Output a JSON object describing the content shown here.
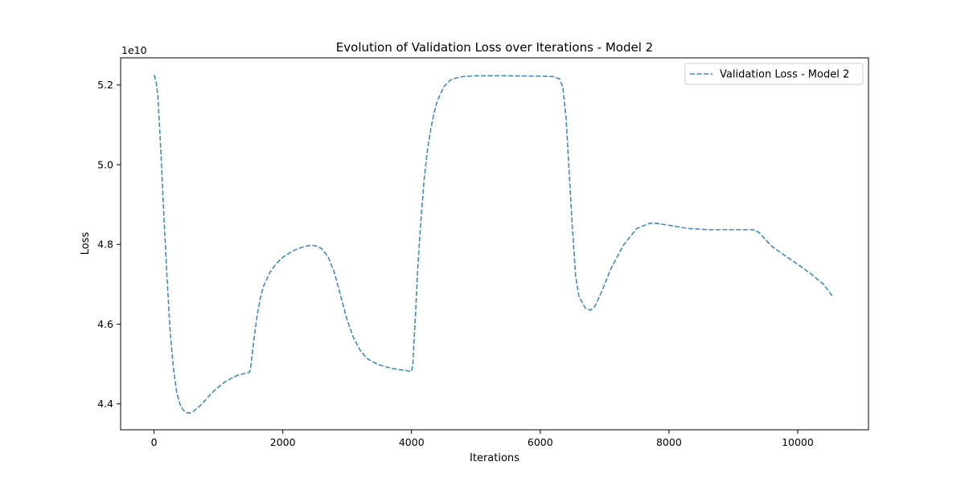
{
  "chart_data": {
    "type": "line",
    "title": "Evolution of Validation Loss over Iterations - Model 2",
    "xlabel": "Iterations",
    "ylabel": "Loss",
    "y_offset_label": "1e10",
    "xlim": [
      -520,
      11100
    ],
    "ylim": [
      4.335,
      5.268
    ],
    "x_ticks": [
      0,
      2000,
      4000,
      6000,
      8000,
      10000
    ],
    "x_tick_labels": [
      "0",
      "2000",
      "4000",
      "6000",
      "8000",
      "10000"
    ],
    "y_ticks": [
      4.4,
      4.6,
      4.8,
      5.0,
      5.2
    ],
    "y_tick_labels": [
      "4.4",
      "4.6",
      "4.8",
      "5.0",
      "5.2"
    ],
    "grid": false,
    "legend_position": "top-right",
    "series": [
      {
        "name": "Validation Loss - Model 2",
        "color": "#1f77b4",
        "line_style": "dashed",
        "points": [
          [
            0,
            5.225
          ],
          [
            30,
            5.21
          ],
          [
            60,
            5.17
          ],
          [
            100,
            5.05
          ],
          [
            150,
            4.88
          ],
          [
            200,
            4.72
          ],
          [
            250,
            4.58
          ],
          [
            300,
            4.49
          ],
          [
            350,
            4.43
          ],
          [
            400,
            4.4
          ],
          [
            450,
            4.385
          ],
          [
            500,
            4.378
          ],
          [
            550,
            4.377
          ],
          [
            600,
            4.38
          ],
          [
            700,
            4.393
          ],
          [
            800,
            4.41
          ],
          [
            900,
            4.428
          ],
          [
            1000,
            4.442
          ],
          [
            1100,
            4.455
          ],
          [
            1200,
            4.464
          ],
          [
            1300,
            4.472
          ],
          [
            1400,
            4.476
          ],
          [
            1480,
            4.479
          ],
          [
            1500,
            4.49
          ],
          [
            1550,
            4.56
          ],
          [
            1600,
            4.62
          ],
          [
            1650,
            4.665
          ],
          [
            1700,
            4.695
          ],
          [
            1800,
            4.73
          ],
          [
            1900,
            4.752
          ],
          [
            2000,
            4.768
          ],
          [
            2100,
            4.778
          ],
          [
            2200,
            4.787
          ],
          [
            2300,
            4.793
          ],
          [
            2400,
            4.797
          ],
          [
            2500,
            4.797
          ],
          [
            2600,
            4.79
          ],
          [
            2700,
            4.77
          ],
          [
            2800,
            4.73
          ],
          [
            2900,
            4.67
          ],
          [
            3000,
            4.61
          ],
          [
            3100,
            4.565
          ],
          [
            3200,
            4.535
          ],
          [
            3300,
            4.515
          ],
          [
            3400,
            4.505
          ],
          [
            3500,
            4.498
          ],
          [
            3600,
            4.493
          ],
          [
            3700,
            4.489
          ],
          [
            3800,
            4.486
          ],
          [
            3900,
            4.484
          ],
          [
            4000,
            4.481
          ],
          [
            4020,
            4.5
          ],
          [
            4060,
            4.62
          ],
          [
            4100,
            4.75
          ],
          [
            4150,
            4.87
          ],
          [
            4200,
            4.97
          ],
          [
            4250,
            5.04
          ],
          [
            4300,
            5.09
          ],
          [
            4350,
            5.13
          ],
          [
            4400,
            5.16
          ],
          [
            4500,
            5.195
          ],
          [
            4600,
            5.212
          ],
          [
            4700,
            5.218
          ],
          [
            4800,
            5.221
          ],
          [
            5000,
            5.223
          ],
          [
            5500,
            5.223
          ],
          [
            6000,
            5.222
          ],
          [
            6200,
            5.221
          ],
          [
            6300,
            5.215
          ],
          [
            6350,
            5.195
          ],
          [
            6400,
            5.12
          ],
          [
            6450,
            4.98
          ],
          [
            6500,
            4.84
          ],
          [
            6550,
            4.72
          ],
          [
            6600,
            4.67
          ],
          [
            6700,
            4.64
          ],
          [
            6780,
            4.635
          ],
          [
            6850,
            4.645
          ],
          [
            6950,
            4.68
          ],
          [
            7100,
            4.74
          ],
          [
            7300,
            4.8
          ],
          [
            7500,
            4.84
          ],
          [
            7700,
            4.853
          ],
          [
            7800,
            4.853
          ],
          [
            8000,
            4.848
          ],
          [
            8300,
            4.84
          ],
          [
            8600,
            4.837
          ],
          [
            9000,
            4.837
          ],
          [
            9300,
            4.837
          ],
          [
            9400,
            4.83
          ],
          [
            9500,
            4.812
          ],
          [
            9600,
            4.795
          ],
          [
            9800,
            4.772
          ],
          [
            10000,
            4.75
          ],
          [
            10200,
            4.727
          ],
          [
            10400,
            4.7
          ],
          [
            10550,
            4.668
          ]
        ]
      }
    ]
  }
}
